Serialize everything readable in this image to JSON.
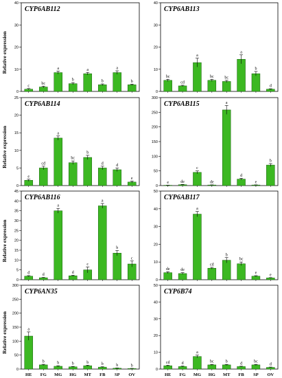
{
  "colors": {
    "bar": "#3cb822",
    "bar_edge": "#1a5e10"
  },
  "ylabel": "Relative expression",
  "chart_data": [
    {
      "type": "bar",
      "title": "CYP6AB112",
      "ylim": [
        0,
        40
      ],
      "yticks": [
        0,
        10,
        20,
        30,
        40
      ],
      "categories": [
        "HE",
        "FG",
        "MG",
        "HG",
        "MT",
        "FB",
        "SP",
        "OV"
      ],
      "values": [
        1.0,
        2.0,
        8.5,
        3.5,
        8.0,
        3.0,
        8.5,
        3.0
      ],
      "errors": [
        0.3,
        0.4,
        0.7,
        0.5,
        0.6,
        0.4,
        0.8,
        0.3
      ],
      "labels": [
        "c",
        "bc",
        "a",
        "b",
        "a",
        "b",
        "a",
        "b"
      ]
    },
    {
      "type": "bar",
      "title": "CYP6AB113",
      "ylim": [
        0,
        40
      ],
      "yticks": [
        0,
        10,
        20,
        30,
        40
      ],
      "categories": [
        "HE",
        "FG",
        "MG",
        "HG",
        "MT",
        "FB",
        "SP",
        "OV"
      ],
      "values": [
        5.0,
        2.5,
        13.0,
        5.0,
        4.5,
        14.5,
        8.0,
        1.0
      ],
      "errors": [
        0.5,
        0.3,
        2.0,
        0.5,
        0.5,
        2.0,
        1.0,
        0.2
      ],
      "labels": [
        "bc",
        "cd",
        "a",
        "bc",
        "bc",
        "a",
        "b",
        "d"
      ]
    },
    {
      "type": "bar",
      "title": "CYP6AB114",
      "ylim": [
        0,
        25
      ],
      "yticks": [
        0,
        5,
        10,
        15,
        20,
        25
      ],
      "categories": [
        "HE",
        "FG",
        "MG",
        "HG",
        "MT",
        "FB",
        "SP",
        "OV"
      ],
      "values": [
        1.5,
        5.0,
        13.5,
        6.5,
        8.0,
        5.0,
        4.5,
        1.0
      ],
      "errors": [
        0.3,
        0.5,
        0.6,
        0.5,
        0.6,
        0.5,
        0.5,
        0.3
      ],
      "labels": [
        "e",
        "cd",
        "a",
        "bc",
        "b",
        "d",
        "d",
        "e"
      ]
    },
    {
      "type": "bar",
      "title": "CYP6AB115",
      "ylim": [
        0,
        300
      ],
      "yticks": [
        0,
        50,
        100,
        150,
        200,
        250,
        300
      ],
      "categories": [
        "HE",
        "FG",
        "MG",
        "HG",
        "MT",
        "FB",
        "SP",
        "OV"
      ],
      "values": [
        1,
        3,
        45,
        2,
        258,
        22,
        2,
        70
      ],
      "errors": [
        0.5,
        1,
        5,
        0.5,
        15,
        3,
        0.5,
        5
      ],
      "labels": [
        "e",
        "de",
        "c",
        "de",
        "a",
        "d",
        "e",
        "b"
      ]
    },
    {
      "type": "bar",
      "title": "CYP6AB116",
      "ylim": [
        0,
        45
      ],
      "yticks": [
        0,
        5,
        10,
        15,
        20,
        25,
        30,
        35,
        40,
        45
      ],
      "categories": [
        "HE",
        "FG",
        "MG",
        "HG",
        "MT",
        "FB",
        "SP",
        "OV"
      ],
      "values": [
        1.8,
        1.0,
        35.0,
        2.0,
        5.0,
        37.5,
        13.5,
        8.0
      ],
      "errors": [
        0.3,
        0.2,
        1.2,
        0.3,
        1.5,
        1.2,
        1.3,
        1.5
      ],
      "labels": [
        "d",
        "d",
        "a",
        "d",
        "c",
        "a",
        "b",
        "c"
      ]
    },
    {
      "type": "bar",
      "title": "CYP6AB117",
      "ylim": [
        0,
        50
      ],
      "yticks": [
        0,
        10,
        20,
        30,
        40,
        50
      ],
      "categories": [
        "HE",
        "FG",
        "MG",
        "HG",
        "MT",
        "FB",
        "SP",
        "OV"
      ],
      "values": [
        4.0,
        3.5,
        37.0,
        6.5,
        11.0,
        9.0,
        2.0,
        1.0
      ],
      "errors": [
        0.5,
        0.5,
        1.5,
        0.5,
        1.5,
        1.0,
        0.3,
        0.2
      ],
      "labels": [
        "de",
        "de",
        "a",
        "cd",
        "b",
        "bc",
        "e",
        "e"
      ]
    },
    {
      "type": "bar",
      "title": "CYP6AN35",
      "ylim": [
        0,
        300
      ],
      "yticks": [
        0,
        50,
        100,
        150,
        200,
        250,
        300
      ],
      "categories": [
        "HE",
        "FG",
        "MG",
        "HG",
        "MT",
        "FB",
        "SP",
        "OV"
      ],
      "values": [
        118,
        15,
        10,
        8,
        12,
        7,
        3,
        2
      ],
      "errors": [
        15,
        2,
        2,
        1.5,
        2,
        1.5,
        1,
        0.5
      ],
      "labels": [
        "a",
        "b",
        "b",
        "b",
        "b",
        "b",
        "b",
        "b"
      ]
    },
    {
      "type": "bar",
      "title": "CYP6B74",
      "ylim": [
        0,
        50
      ],
      "yticks": [
        0,
        10,
        20,
        30,
        40,
        50
      ],
      "categories": [
        "HE",
        "FG",
        "MG",
        "HG",
        "MT",
        "FB",
        "SP",
        "OV"
      ],
      "values": [
        2.0,
        1.5,
        7.5,
        2.5,
        2.5,
        1.5,
        2.5,
        1.0
      ],
      "errors": [
        0.3,
        0.3,
        0.8,
        0.3,
        0.3,
        0.2,
        0.3,
        0.2
      ],
      "labels": [
        "cd",
        "d",
        "a",
        "bc",
        "b",
        "d",
        "bc",
        "d"
      ]
    }
  ]
}
